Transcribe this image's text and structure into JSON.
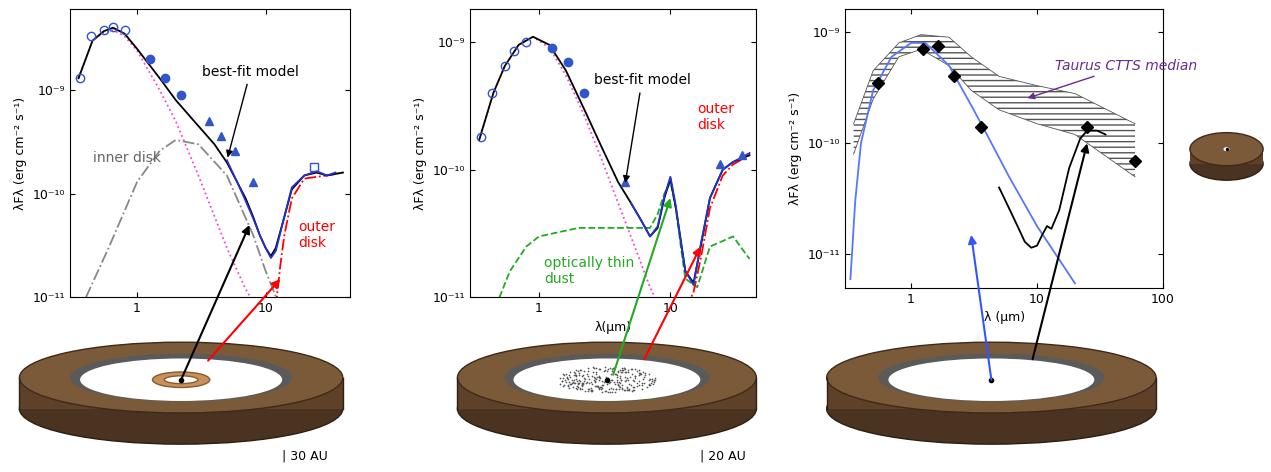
{
  "chart_data": [
    {
      "type": "line",
      "log": true,
      "ylabel": "λFλ (erg cm⁻² s⁻¹)",
      "xlim": [
        0.3,
        45
      ],
      "ylim": [
        1e-11,
        6e-09
      ],
      "xticks": [
        1,
        10
      ],
      "yticks": [
        {
          "value": 1e-11,
          "label": "10⁻¹¹"
        },
        {
          "value": 1e-10,
          "label": "10⁻¹⁰"
        },
        {
          "value": 1e-09,
          "label": "10⁻⁹"
        }
      ],
      "series": [
        {
          "type": "line",
          "color": "#ff44cc",
          "line_style": "dotted",
          "x": [
            0.35,
            0.45,
            0.55,
            0.65,
            0.8,
            1,
            1.5,
            2,
            3,
            5,
            7,
            9
          ],
          "values": [
            1.3e-09,
            3e-09,
            3.6e-09,
            3.8e-09,
            3.3e-09,
            2.4e-09,
            1e-09,
            5e-10,
            1.5e-10,
            3e-11,
            1.2e-11,
            7e-12
          ]
        },
        {
          "type": "line",
          "color": "#888888",
          "line_style": "dashdot",
          "x": [
            0.4,
            0.6,
            1,
            1.5,
            2,
            3,
            5,
            8,
            10,
            13
          ],
          "values": [
            1e-11,
            3e-11,
            1.3e-10,
            2.6e-10,
            3.3e-10,
            3e-10,
            1.5e-10,
            4e-11,
            1.8e-11,
            8e-12
          ]
        },
        {
          "type": "line",
          "color": "#ff0000",
          "line_style": "dashdot",
          "x": [
            12,
            13,
            14,
            16,
            20,
            30,
            40
          ],
          "values": [
            8e-12,
            2e-11,
            4e-11,
            9e-11,
            1.4e-10,
            1.5e-10,
            1.6e-10
          ]
        },
        {
          "type": "line",
          "color": "#000000",
          "line_style": "solid",
          "x": [
            0.35,
            0.45,
            0.55,
            0.65,
            0.8,
            1.0,
            1.5,
            2,
            3,
            4,
            5,
            6,
            7,
            8,
            9,
            10,
            11,
            12,
            14,
            16,
            20,
            25,
            30,
            40
          ],
          "values": [
            1.3e-09,
            3e-09,
            3.7e-09,
            4e-09,
            3.5e-09,
            2.5e-09,
            1.3e-09,
            8e-10,
            4.5e-10,
            3e-10,
            2e-10,
            1.3e-10,
            9e-11,
            6e-11,
            4e-11,
            3e-11,
            2.5e-11,
            3e-11,
            6e-11,
            1.1e-10,
            1.5e-10,
            1.6e-10,
            1.5e-10,
            1.6e-10
          ]
        },
        {
          "type": "line",
          "color": "#2233cc",
          "line_style": "solid",
          "x": [
            5,
            6,
            7,
            8,
            9,
            10,
            11,
            12,
            14,
            16,
            20,
            25,
            30,
            35
          ],
          "values": [
            2.1e-10,
            1.3e-10,
            8.5e-11,
            5.8e-11,
            4e-11,
            3e-11,
            2.4e-11,
            2.8e-11,
            6e-11,
            1.15e-10,
            1.5e-10,
            1.65e-10,
            1.5e-10,
            1.6e-10
          ]
        },
        {
          "type": "scatter",
          "color": "#3355cc",
          "marker": "circle_open",
          "x": [
            0.36,
            0.44,
            0.55,
            0.65,
            0.8
          ],
          "values": [
            1.3e-09,
            3.3e-09,
            3.8e-09,
            4.1e-09,
            3.8e-09
          ]
        },
        {
          "type": "scatter",
          "color": "#3355cc",
          "marker": "circle",
          "x": [
            1.25,
            1.65,
            2.2
          ],
          "values": [
            2e-09,
            1.3e-09,
            9e-10
          ]
        },
        {
          "type": "scatter",
          "color": "#3355cc",
          "marker": "triangle",
          "x": [
            3.6,
            4.5,
            5.8,
            8
          ],
          "values": [
            5e-10,
            3.6e-10,
            2.6e-10,
            1.3e-10
          ]
        },
        {
          "type": "scatter",
          "color": "#3355cc",
          "marker": "square_open",
          "x": [
            24
          ],
          "values": [
            1.8e-10
          ]
        }
      ],
      "annotations": [
        {
          "text": "best-fit model",
          "x": 3.2,
          "y": 1.5e-09,
          "color": "#000000",
          "arrow_x": 5,
          "arrow_y": 2.1e-10
        },
        {
          "text": "inner disk",
          "x": 0.45,
          "y": 2.2e-10,
          "color": "#666666"
        },
        {
          "text": "outer\ndisk",
          "x": 18,
          "y": 4e-11,
          "color": "#ff0000"
        }
      ],
      "cartoon": {
        "type": "inner_ring",
        "caption": "| 30 AU",
        "pointers": [
          {
            "color": "#000000",
            "x": 7.5,
            "y": 5e-11
          },
          {
            "color": "#ff0000",
            "x": 13,
            "y": 1.5e-11
          }
        ]
      }
    },
    {
      "type": "line",
      "log": true,
      "xlabel": "λ(μm)",
      "ylabel": "λFλ (erg cm⁻² s⁻¹)",
      "xlim": [
        0.3,
        45
      ],
      "ylim": [
        1e-11,
        1.8e-09
      ],
      "xticks": [
        1,
        10
      ],
      "yticks": [
        {
          "value": 1e-11,
          "label": "10⁻¹¹"
        },
        {
          "value": 1e-10,
          "label": "10⁻¹⁰"
        },
        {
          "value": 1e-09,
          "label": "10⁻⁹"
        }
      ],
      "series": [
        {
          "type": "line",
          "color": "#ff44cc",
          "line_style": "dotted",
          "x": [
            0.35,
            0.45,
            0.55,
            0.7,
            0.9,
            1.2,
            1.6,
            2.2,
            3,
            5,
            7,
            9
          ],
          "values": [
            1.7e-10,
            4e-10,
            6.5e-10,
            9.5e-10,
            1.1e-09,
            9e-10,
            5.5e-10,
            2.7e-10,
            1.2e-10,
            3e-11,
            1.2e-11,
            7e-12
          ]
        },
        {
          "type": "line",
          "color": "#22aa22",
          "line_style": "dashed",
          "x": [
            0.5,
            0.6,
            0.8,
            1,
            2,
            5,
            7,
            8,
            9,
            10,
            11,
            12,
            13,
            16,
            20,
            30,
            40
          ],
          "values": [
            1e-11,
            1.6e-11,
            2.5e-11,
            3e-11,
            3.5e-11,
            3.5e-11,
            3.5e-11,
            4.5e-11,
            6.5e-11,
            8e-11,
            5e-11,
            2.5e-11,
            1.4e-11,
            1.2e-11,
            2.5e-11,
            3e-11,
            2e-11
          ]
        },
        {
          "type": "line",
          "color": "#ff0000",
          "line_style": "dashdot",
          "x": [
            13,
            15,
            17,
            20,
            25,
            30,
            40
          ],
          "values": [
            8e-12,
            1.1e-11,
            2e-11,
            5e-11,
            9e-11,
            1.1e-10,
            1.3e-10
          ]
        },
        {
          "type": "line",
          "color": "#000000",
          "line_style": "solid",
          "x": [
            0.35,
            0.45,
            0.55,
            0.7,
            0.9,
            1.2,
            1.6,
            2.2,
            3,
            4,
            5,
            6,
            7,
            8,
            9,
            10,
            11,
            12,
            13,
            15,
            17,
            20,
            25,
            30,
            40
          ],
          "values": [
            1.7e-10,
            4e-10,
            6.5e-10,
            9.5e-10,
            1.1e-09,
            9.5e-10,
            6e-10,
            3e-10,
            1.5e-10,
            8e-11,
            5.5e-11,
            4e-11,
            3e-11,
            3.5e-11,
            6e-11,
            8.5e-11,
            5e-11,
            2.8e-11,
            1.6e-11,
            1.3e-11,
            2.5e-11,
            6e-11,
            1e-10,
            1.15e-10,
            1.3e-10
          ]
        },
        {
          "type": "line",
          "color": "#2233cc",
          "line_style": "solid",
          "x": [
            5,
            6,
            7,
            8,
            9,
            10,
            11,
            12,
            13,
            15,
            17,
            20,
            25,
            30,
            35,
            40
          ],
          "values": [
            5.5e-11,
            4e-11,
            3e-11,
            3.6e-11,
            6.2e-11,
            8.8e-11,
            5.2e-11,
            2.7e-11,
            1.6e-11,
            1.25e-11,
            2.6e-11,
            6e-11,
            1e-10,
            1.15e-10,
            1.25e-10,
            1.35e-10
          ]
        },
        {
          "type": "scatter",
          "color": "#3355cc",
          "marker": "circle_open",
          "x": [
            0.36,
            0.44,
            0.55,
            0.65,
            0.8
          ],
          "values": [
            1.8e-10,
            4e-10,
            6.5e-10,
            8.5e-10,
            1e-09
          ]
        },
        {
          "type": "scatter",
          "color": "#3355cc",
          "marker": "circle",
          "x": [
            1.25,
            1.65,
            2.2
          ],
          "values": [
            9e-10,
            7e-10,
            4e-10
          ]
        },
        {
          "type": "scatter",
          "color": "#3355cc",
          "marker": "triangle",
          "x": [
            4.5,
            24,
            35
          ],
          "values": [
            8e-11,
            1.1e-10,
            1.3e-10
          ]
        }
      ],
      "annotations": [
        {
          "text": "best-fit model",
          "x": 2.6,
          "y": 5e-10,
          "color": "#000000",
          "arrow_x": 4.5,
          "arrow_y": 7.5e-11
        },
        {
          "text": "optically thin\ndust",
          "x": 1.1,
          "y": 1.6e-11,
          "color": "#22aa22"
        },
        {
          "text": "outer\ndisk",
          "x": 16,
          "y": 2.6e-10,
          "color": "#ff0000"
        }
      ],
      "cartoon": {
        "type": "thin_dust",
        "caption": "| 20 AU",
        "pointers": [
          {
            "color": "#22aa22",
            "x": 10,
            "y": 6e-11
          },
          {
            "color": "#ff0000",
            "x": 17,
            "y": 2.5e-11
          }
        ]
      }
    },
    {
      "type": "line",
      "log": true,
      "xlabel": "λ (μm)",
      "ylabel": "λFλ (erg cm⁻² s⁻¹)",
      "xlim": [
        0.3,
        100
      ],
      "ylim": [
        5e-12,
        1.6e-09
      ],
      "xticks": [
        1,
        10,
        100
      ],
      "yticks": [
        {
          "value": 1e-11,
          "label": "10⁻¹¹"
        },
        {
          "value": 1e-10,
          "label": "10⁻¹⁰"
        },
        {
          "value": 1e-09,
          "label": "10⁻⁹"
        }
      ],
      "series": [
        {
          "type": "area",
          "color": "#555555",
          "x": [
            0.35,
            0.5,
            0.8,
            1.2,
            2,
            3,
            5,
            10,
            20,
            60
          ],
          "low": [
            8e-11,
            2.5e-10,
            6e-10,
            7e-10,
            5e-10,
            3e-10,
            2e-10,
            1.5e-10,
            1.2e-10,
            5e-11
          ],
          "high": [
            1.5e-10,
            4.5e-10,
            8e-10,
            9.5e-10,
            9e-10,
            6e-10,
            4e-10,
            3.3e-10,
            2.8e-10,
            1.5e-10
          ]
        },
        {
          "type": "line",
          "color": "#5577ff",
          "line_style": "solid",
          "x": [
            0.33,
            0.36,
            0.4,
            0.5,
            0.7,
            1,
            1.3,
            2,
            3,
            4,
            6,
            10,
            20
          ],
          "values": [
            6e-12,
            3e-11,
            1e-10,
            3e-10,
            6e-10,
            8e-10,
            8e-10,
            5e-10,
            2.2e-10,
            1.2e-10,
            5e-11,
            1.8e-11,
            5.5e-12
          ]
        },
        {
          "type": "line",
          "color": "#000000",
          "line_style": "solid",
          "x": [
            5,
            6,
            7,
            8,
            9,
            10,
            11,
            12,
            13,
            15,
            18,
            22,
            25,
            30,
            35
          ],
          "values": [
            4e-11,
            2.6e-11,
            1.8e-11,
            1.3e-11,
            1.15e-11,
            1.2e-11,
            1.5e-11,
            1.8e-11,
            1.7e-11,
            2.5e-11,
            6e-11,
            1.1e-10,
            1.3e-10,
            1.3e-10,
            1.2e-10
          ]
        },
        {
          "type": "scatter",
          "color": "#000000",
          "marker": "diamond",
          "x": [
            0.55,
            1.25,
            1.65,
            2.2,
            3.6,
            25,
            60
          ],
          "values": [
            3.5e-10,
            7e-10,
            7.5e-10,
            4e-10,
            1.4e-10,
            1.4e-10,
            7e-11
          ]
        }
      ],
      "annotations": [
        {
          "text": "Taurus CTTS median",
          "x": 14,
          "y": 5e-10,
          "color": "#6a2c91",
          "arrow_x": 8,
          "arrow_y": 2.5e-10
        }
      ],
      "cartoon": {
        "type": "gap",
        "pointers": [
          {
            "color": "#3355ff",
            "x": 3,
            "y": 1.5e-11
          },
          {
            "color": "#000000",
            "x": 25,
            "y": 1e-10
          }
        ]
      }
    }
  ]
}
